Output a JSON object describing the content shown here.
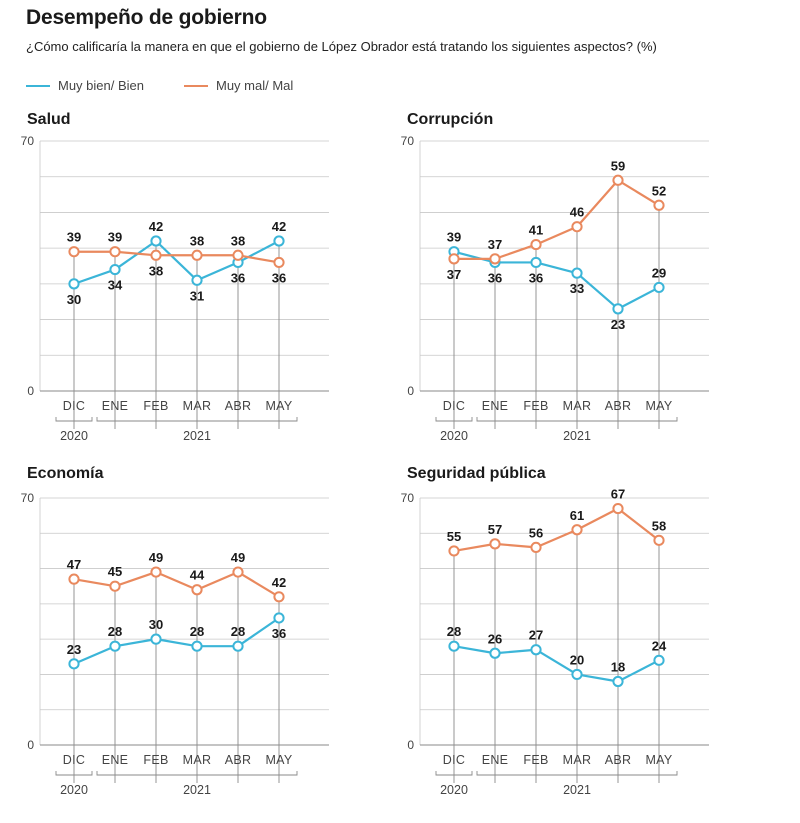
{
  "header": {
    "title": "Desempeño de gobierno",
    "subtitle": "¿Cómo calificaría la manera en que el gobierno de López Obrador está tratando los siguientes aspectos? (%)"
  },
  "legend": {
    "good": "Muy bien/ Bien",
    "bad": "Muy mal/ Mal"
  },
  "colors": {
    "good": "#3bb5d8",
    "bad": "#e9895e",
    "grid": "#c8c8c8",
    "axis": "#8a8a8a"
  },
  "chart_data": [
    {
      "type": "line",
      "title": "Salud",
      "categories": [
        "DIC",
        "ENE",
        "FEB",
        "MAR",
        "ABR",
        "MAY"
      ],
      "year_groups": [
        {
          "label": "2020",
          "from": 0,
          "to": 0
        },
        {
          "label": "2021",
          "from": 1,
          "to": 5
        }
      ],
      "ylim": [
        0,
        70
      ],
      "y_ticks_labeled": [
        0,
        70
      ],
      "grid": true,
      "series": [
        {
          "name": "Muy bien/ Bien",
          "key": "good",
          "values": [
            30,
            34,
            42,
            31,
            36,
            42
          ],
          "label_pos": [
            "below",
            "below",
            "above",
            "below",
            "below",
            "above"
          ]
        },
        {
          "name": "Muy mal/ Mal",
          "key": "bad",
          "values": [
            39,
            39,
            38,
            38,
            38,
            36
          ],
          "label_pos": [
            "above",
            "above",
            "below",
            "above",
            "above",
            "below"
          ]
        }
      ]
    },
    {
      "type": "line",
      "title": "Corrupción",
      "categories": [
        "DIC",
        "ENE",
        "FEB",
        "MAR",
        "ABR",
        "MAY"
      ],
      "year_groups": [
        {
          "label": "2020",
          "from": 0,
          "to": 0
        },
        {
          "label": "2021",
          "from": 1,
          "to": 5
        }
      ],
      "ylim": [
        0,
        70
      ],
      "y_ticks_labeled": [
        0,
        70
      ],
      "grid": true,
      "series": [
        {
          "name": "Muy bien/ Bien",
          "key": "good",
          "values": [
            39,
            36,
            36,
            33,
            23,
            29
          ],
          "label_pos": [
            "above",
            "below",
            "below",
            "below",
            "below",
            "above"
          ]
        },
        {
          "name": "Muy mal/ Mal",
          "key": "bad",
          "values": [
            37,
            37,
            41,
            46,
            59,
            52
          ],
          "label_pos": [
            "below",
            "above",
            "above",
            "above",
            "above",
            "above"
          ]
        }
      ]
    },
    {
      "type": "line",
      "title": "Economía",
      "categories": [
        "DIC",
        "ENE",
        "FEB",
        "MAR",
        "ABR",
        "MAY"
      ],
      "year_groups": [
        {
          "label": "2020",
          "from": 0,
          "to": 0
        },
        {
          "label": "2021",
          "from": 1,
          "to": 5
        }
      ],
      "ylim": [
        0,
        70
      ],
      "y_ticks_labeled": [
        0,
        70
      ],
      "grid": true,
      "series": [
        {
          "name": "Muy bien/ Bien",
          "key": "good",
          "values": [
            23,
            28,
            30,
            28,
            28,
            36
          ],
          "label_pos": [
            "above",
            "above",
            "above",
            "above",
            "above",
            "below"
          ]
        },
        {
          "name": "Muy mal/ Mal",
          "key": "bad",
          "values": [
            47,
            45,
            49,
            44,
            49,
            42
          ],
          "label_pos": [
            "above",
            "above",
            "above",
            "above",
            "above",
            "above"
          ]
        }
      ]
    },
    {
      "type": "line",
      "title": "Seguridad pública",
      "categories": [
        "DIC",
        "ENE",
        "FEB",
        "MAR",
        "ABR",
        "MAY"
      ],
      "year_groups": [
        {
          "label": "2020",
          "from": 0,
          "to": 0
        },
        {
          "label": "2021",
          "from": 1,
          "to": 5
        }
      ],
      "ylim": [
        0,
        70
      ],
      "y_ticks_labeled": [
        0,
        70
      ],
      "grid": true,
      "series": [
        {
          "name": "Muy bien/ Bien",
          "key": "good",
          "values": [
            28,
            26,
            27,
            20,
            18,
            24
          ],
          "label_pos": [
            "above",
            "above",
            "above",
            "above",
            "above",
            "above"
          ]
        },
        {
          "name": "Muy mal/ Mal",
          "key": "bad",
          "values": [
            55,
            57,
            56,
            61,
            67,
            58
          ],
          "label_pos": [
            "above",
            "above",
            "above",
            "above",
            "above",
            "above"
          ]
        }
      ]
    }
  ]
}
